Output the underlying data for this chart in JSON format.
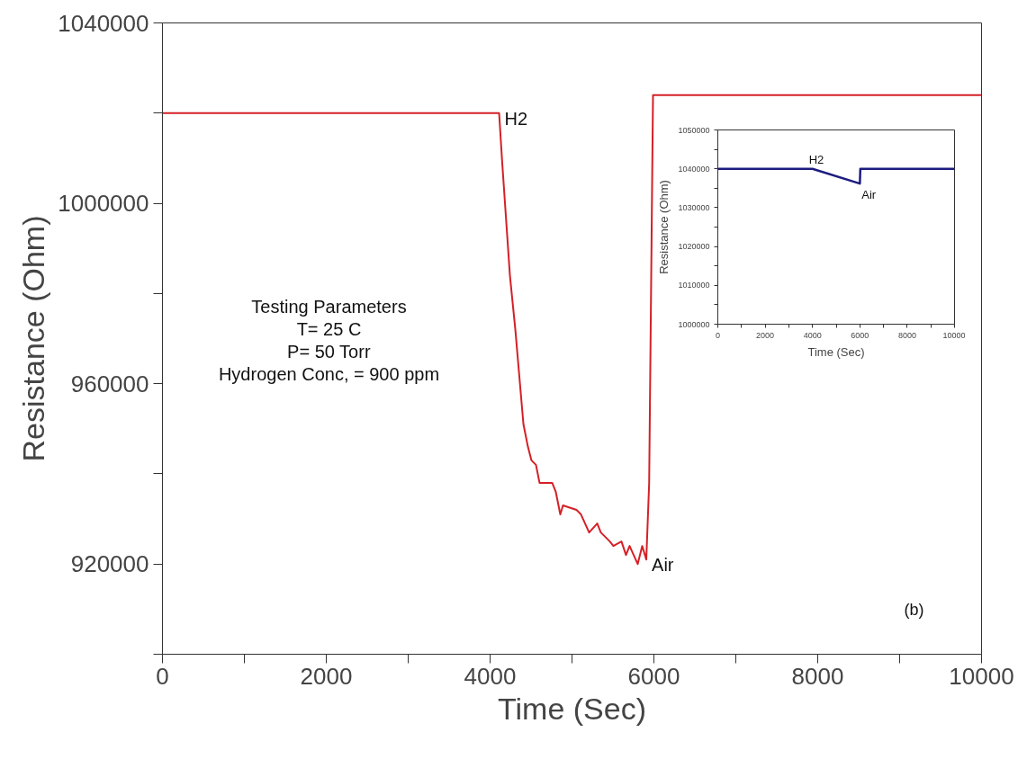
{
  "chart_data": [
    {
      "type": "line",
      "xlabel": "Time (Sec)",
      "ylabel": "Resistance (Ohm)",
      "xlim": [
        0,
        10000
      ],
      "ylim": [
        900000,
        1040000
      ],
      "xticks": [
        0,
        {
          "value": 1000,
          "label": null
        },
        2000,
        {
          "value": 3000,
          "label": null
        },
        4000,
        {
          "value": 5000,
          "label": null
        },
        6000,
        {
          "value": 7000,
          "label": null
        },
        8000,
        {
          "value": 9000,
          "label": null
        },
        10000
      ],
      "yticks": [
        {
          "value": 900000,
          "label": null
        },
        920000,
        {
          "value": 940000,
          "label": null
        },
        960000,
        {
          "value": 980000,
          "label": null
        },
        1000000,
        {
          "value": 1020000,
          "label": null
        },
        1040000
      ],
      "grid": false,
      "marker": "none",
      "line_style": "solid",
      "series": [
        {
          "color": "#d42027",
          "x": [
            0,
            4110,
            4148,
            4242,
            4308,
            4407,
            4462,
            4505,
            4560,
            4604,
            4681,
            4758,
            4802,
            4857,
            4890,
            5055,
            5110,
            5209,
            5308,
            5352,
            5462,
            5505,
            5604,
            5659,
            5703,
            5802,
            5857,
            5907,
            5942,
            5989,
            10000
          ],
          "values": [
            1020000,
            1020000,
            1009000,
            984000,
            972000,
            951000,
            946000,
            943000,
            942000,
            938000,
            938000,
            938000,
            936000,
            931000,
            933000,
            932000,
            931000,
            927000,
            929000,
            927000,
            925000,
            924000,
            925000,
            922000,
            924000,
            920000,
            924000,
            921000,
            938000,
            1024000,
            1024000
          ]
        }
      ],
      "annotations": [
        {
          "text": "H2",
          "x": 4110,
          "y": 1020000
        },
        {
          "text": "Air",
          "x": 5907,
          "y": 921000
        },
        "Testing Parameters",
        "T= 25 C",
        "P= 50 Torr",
        "Hydrogen Conc, = 900 ppm",
        "(b)"
      ]
    },
    {
      "type": "line",
      "xlabel": "Time (Sec)",
      "ylabel": "Resistance (Ohm)",
      "xlim": [
        0,
        10000
      ],
      "ylim": [
        1000000,
        1050000
      ],
      "xticks": [
        0,
        {
          "value": 1000,
          "label": null
        },
        2000,
        {
          "value": 3000,
          "label": null
        },
        4000,
        {
          "value": 5000,
          "label": null
        },
        6000,
        {
          "value": 7000,
          "label": null
        },
        8000,
        {
          "value": 9000,
          "label": null
        },
        10000
      ],
      "yticks": [
        1000000,
        {
          "value": 1005000,
          "label": null
        },
        1010000,
        {
          "value": 1015000,
          "label": null
        },
        1020000,
        {
          "value": 1025000,
          "label": null
        },
        1030000,
        {
          "value": 1035000,
          "label": null
        },
        1040000,
        {
          "value": 1045000,
          "label": null
        },
        1050000
      ],
      "grid": false,
      "marker": "none",
      "line_style": "solid",
      "series": [
        {
          "color": "#1c1c80",
          "x": [
            0,
            4000,
            6000,
            6020,
            10000
          ],
          "values": [
            1040000,
            1040000,
            1036200,
            1040000,
            1040000
          ]
        }
      ],
      "annotations": [
        {
          "text": "H2",
          "x": 4000,
          "y": 1040000
        },
        {
          "text": "Air",
          "x": 6000,
          "y": 1036200
        }
      ]
    }
  ]
}
